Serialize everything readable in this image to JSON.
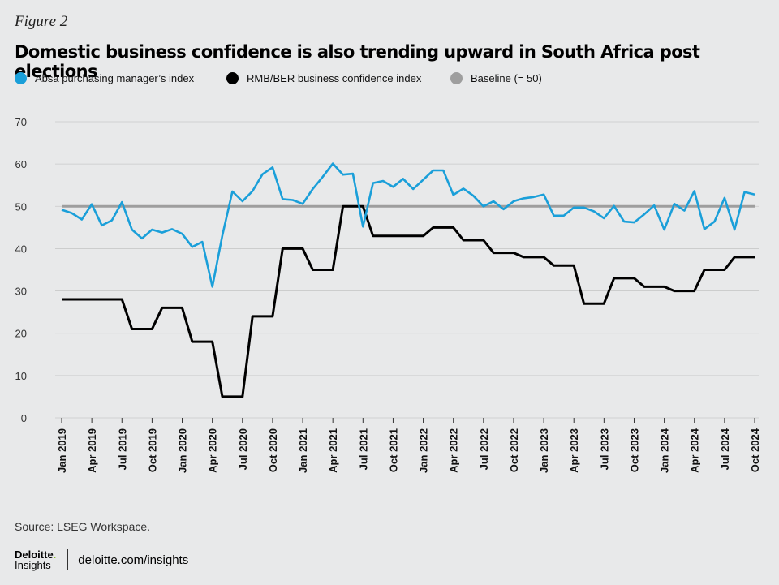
{
  "figure_label": "Figure 2",
  "source": "Source: LSEG Workspace.",
  "brand": {
    "logo_top": "Deloitte",
    "logo_dot": ".",
    "logo_bottom": "Insights",
    "url": "deloitte.com/insights"
  },
  "colors": {
    "pmi": "#1a9fd9",
    "bci": "#000000",
    "baseline": "#9e9e9e",
    "grid": "#c9c9c9",
    "background": "#e8e9ea"
  },
  "chart_data": {
    "type": "line",
    "title": "Domestic business confidence is also trending upward in South Africa post elections",
    "xlabel": "",
    "ylabel": "",
    "ylim": [
      0,
      70
    ],
    "y_ticks": [
      0,
      10,
      20,
      30,
      40,
      50,
      60,
      70
    ],
    "grid": true,
    "legend_position": "top",
    "x_tick_labels": [
      "Jan 2019",
      "Apr 2019",
      "Jul 2019",
      "Oct 2019",
      "Jan 2020",
      "Apr 2020",
      "Jul 2020",
      "Oct 2020",
      "Jan 2021",
      "Apr 2021",
      "Jul 2021",
      "Oct 2021",
      "Jan 2022",
      "Apr 2022",
      "Jul 2022",
      "Oct 2022",
      "Jan 2023",
      "Apr 2023",
      "Jul 2023",
      "Oct 2023",
      "Jan 2024",
      "Apr 2024",
      "Jul 2024",
      "Oct 2024"
    ],
    "x": [
      "2019-01",
      "2019-02",
      "2019-03",
      "2019-04",
      "2019-05",
      "2019-06",
      "2019-07",
      "2019-08",
      "2019-09",
      "2019-10",
      "2019-11",
      "2019-12",
      "2020-01",
      "2020-02",
      "2020-03",
      "2020-04",
      "2020-05",
      "2020-06",
      "2020-07",
      "2020-08",
      "2020-09",
      "2020-10",
      "2020-11",
      "2020-12",
      "2021-01",
      "2021-02",
      "2021-03",
      "2021-04",
      "2021-05",
      "2021-06",
      "2021-07",
      "2021-08",
      "2021-09",
      "2021-10",
      "2021-11",
      "2021-12",
      "2022-01",
      "2022-02",
      "2022-03",
      "2022-04",
      "2022-05",
      "2022-06",
      "2022-07",
      "2022-08",
      "2022-09",
      "2022-10",
      "2022-11",
      "2022-12",
      "2023-01",
      "2023-02",
      "2023-03",
      "2023-04",
      "2023-05",
      "2023-06",
      "2023-07",
      "2023-08",
      "2023-09",
      "2023-10",
      "2023-11",
      "2023-12",
      "2024-01",
      "2024-02",
      "2024-03",
      "2024-04",
      "2024-05",
      "2024-06",
      "2024-07",
      "2024-08",
      "2024-09",
      "2024-10"
    ],
    "series": [
      {
        "name": "Absa purchasing manager’s index",
        "color_key": "pmi",
        "values": [
          49.2,
          48.4,
          46.9,
          50.5,
          45.5,
          46.7,
          51.0,
          44.5,
          42.4,
          44.5,
          43.8,
          44.6,
          43.5,
          40.4,
          41.6,
          31.0,
          43.1,
          53.5,
          51.2,
          53.6,
          57.6,
          59.2,
          51.7,
          51.5,
          50.6,
          54.1,
          57.0,
          60.1,
          57.5,
          57.7,
          45.2,
          55.5,
          56.0,
          54.6,
          56.5,
          54.1,
          56.3,
          58.5,
          58.5,
          52.7,
          54.2,
          52.5,
          50.0,
          51.2,
          49.3,
          51.2,
          51.9,
          52.2,
          52.8,
          47.8,
          47.8,
          49.7,
          49.7,
          48.8,
          47.2,
          50.1,
          46.4,
          46.2,
          48.1,
          50.2,
          44.5,
          50.6,
          49.0,
          53.6,
          44.6,
          46.4,
          52.0,
          44.5,
          53.4,
          52.8
        ]
      },
      {
        "name": "RMB/BER business confidence index",
        "color_key": "bci",
        "values": [
          28,
          28,
          28,
          28,
          28,
          28,
          28,
          21,
          21,
          21,
          26,
          26,
          26,
          18,
          18,
          18,
          5,
          5,
          5,
          24,
          24,
          24,
          40,
          40,
          40,
          35,
          35,
          35,
          50,
          50,
          50,
          43,
          43,
          43,
          43,
          43,
          43,
          45,
          45,
          45,
          42,
          42,
          42,
          39,
          39,
          39,
          38,
          38,
          38,
          36,
          36,
          36,
          27,
          27,
          27,
          33,
          33,
          33,
          31,
          31,
          31,
          30,
          30,
          30,
          35,
          35,
          35,
          38,
          38,
          38
        ]
      },
      {
        "name": "Baseline (= 50)",
        "color_key": "baseline",
        "values": [
          50,
          50,
          50,
          50,
          50,
          50,
          50,
          50,
          50,
          50,
          50,
          50,
          50,
          50,
          50,
          50,
          50,
          50,
          50,
          50,
          50,
          50,
          50,
          50,
          50,
          50,
          50,
          50,
          50,
          50,
          50,
          50,
          50,
          50,
          50,
          50,
          50,
          50,
          50,
          50,
          50,
          50,
          50,
          50,
          50,
          50,
          50,
          50,
          50,
          50,
          50,
          50,
          50,
          50,
          50,
          50,
          50,
          50,
          50,
          50,
          50,
          50,
          50,
          50,
          50,
          50,
          50,
          50,
          50,
          50
        ]
      }
    ]
  }
}
